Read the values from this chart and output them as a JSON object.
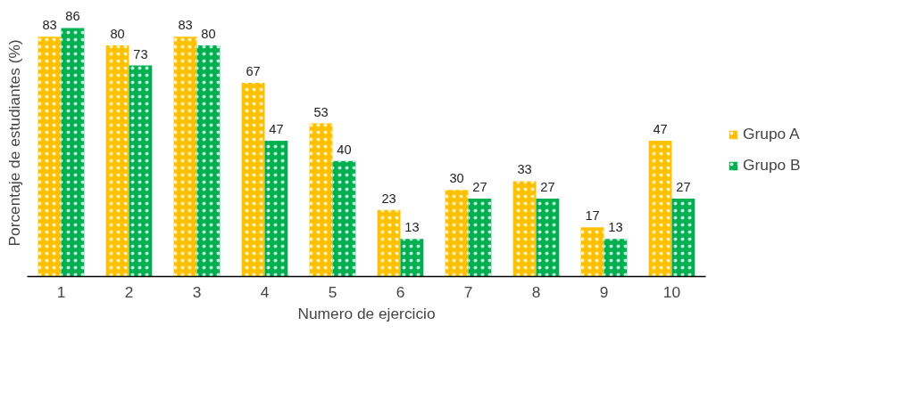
{
  "chart_data": {
    "type": "bar",
    "xlabel": "Numero de ejercicio",
    "ylabel": "Porcentaje de estudiantes (%)",
    "categories": [
      "1",
      "2",
      "3",
      "4",
      "5",
      "6",
      "7",
      "8",
      "9",
      "10"
    ],
    "series": [
      {
        "name": "Grupo A",
        "color": "#ffc000",
        "values": [
          83,
          80,
          83,
          67,
          53,
          23,
          30,
          33,
          17,
          47
        ]
      },
      {
        "name": "Grupo B",
        "color": "#00b050",
        "values": [
          86,
          73,
          80,
          47,
          40,
          13,
          27,
          27,
          13,
          27
        ]
      }
    ],
    "tick_labels": "x",
    "data_labels": true,
    "legend": "right",
    "grid": false
  }
}
